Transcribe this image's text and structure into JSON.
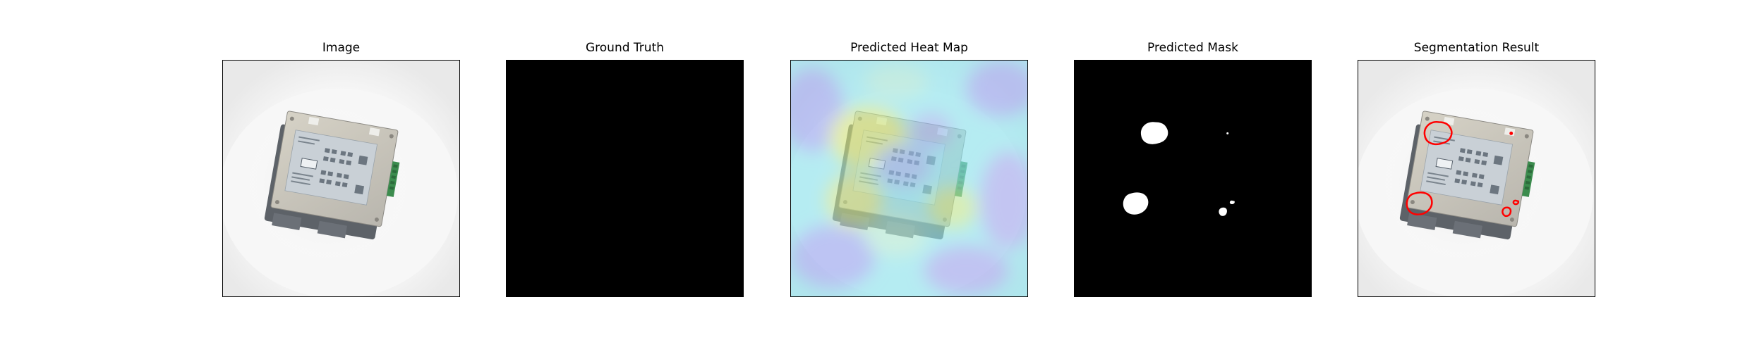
{
  "panels": [
    {
      "title": "Image"
    },
    {
      "title": "Ground Truth"
    },
    {
      "title": "Predicted Heat Map"
    },
    {
      "title": "Predicted Mask"
    },
    {
      "title": "Segmentation Result"
    }
  ],
  "colors": {
    "figure_background": "#ffffff",
    "mask_background": "#000000",
    "mask_foreground": "#ffffff",
    "contour": "#ff0000",
    "heatmap_low": "#9aa6f2",
    "heatmap_mid": "#8ee6f0",
    "heatmap_high": "#d8e87a"
  }
}
